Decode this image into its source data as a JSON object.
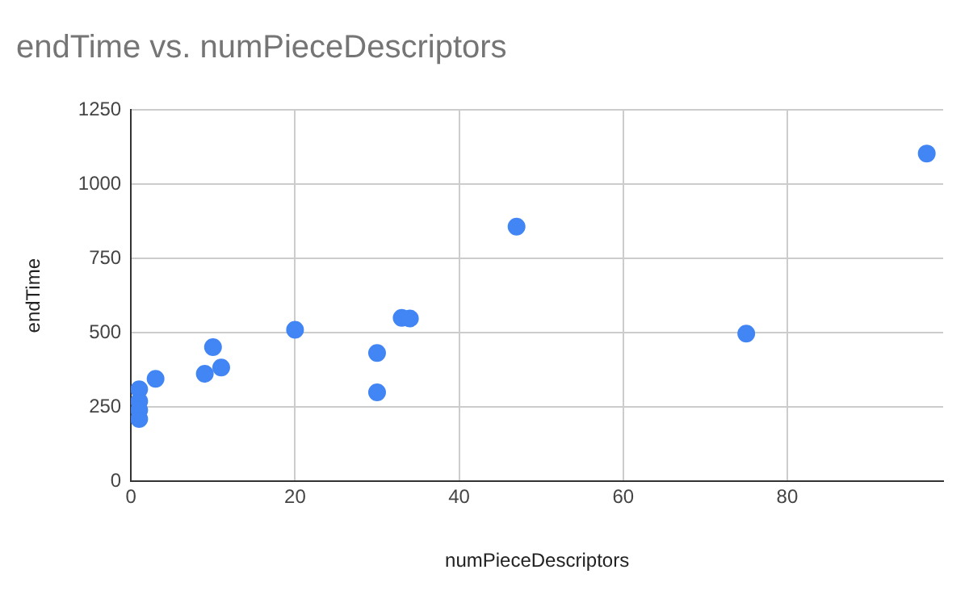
{
  "chart_data": {
    "type": "scatter",
    "title": "endTime vs. numPieceDescriptors",
    "xlabel": "numPieceDescriptors",
    "ylabel": "endTime",
    "x": [
      1,
      1,
      1,
      1,
      3,
      9,
      10,
      11,
      20,
      30,
      30,
      33,
      34,
      47,
      75,
      97
    ],
    "values": [
      310,
      270,
      240,
      210,
      345,
      362,
      452,
      383,
      510,
      432,
      300,
      550,
      548,
      857,
      497,
      1103
    ],
    "color": "#4285f4",
    "marker": "circle",
    "xlim": [
      0,
      99
    ],
    "xticks": [
      0,
      20,
      40,
      60,
      80
    ],
    "ylim": [
      0,
      1250
    ],
    "yticks": [
      0,
      250,
      500,
      750,
      1000,
      1250
    ],
    "grid": true,
    "legend": false
  }
}
